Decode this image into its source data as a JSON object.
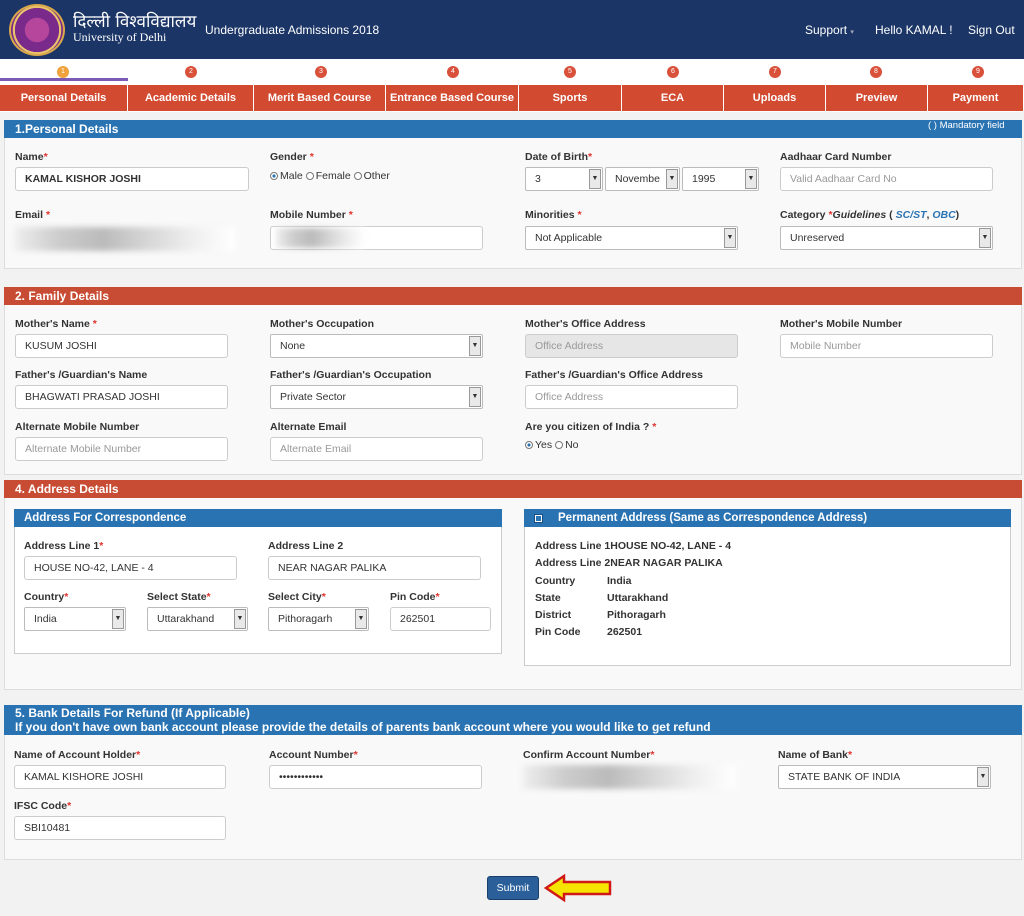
{
  "header": {
    "uni_hindi": "दिल्ली विश्वविद्यालय",
    "uni_en": "University of Delhi",
    "title": "Undergraduate Admissions 2018",
    "support": "Support",
    "support_caret": "▾",
    "greeting": "Hello KAMAL !",
    "signout": "Sign Out"
  },
  "tabs": [
    {
      "num": "1",
      "label": "Personal Details"
    },
    {
      "num": "2",
      "label": "Academic Details"
    },
    {
      "num": "3",
      "label": "Merit Based Course"
    },
    {
      "num": "4",
      "label": "Entrance Based Course"
    },
    {
      "num": "5",
      "label": "Sports"
    },
    {
      "num": "6",
      "label": "ECA"
    },
    {
      "num": "7",
      "label": "Uploads"
    },
    {
      "num": "8",
      "label": "Preview"
    },
    {
      "num": "9",
      "label": "Payment"
    }
  ],
  "personal": {
    "title": "1.Personal Details",
    "mandatory": "( ) Mandatory field",
    "name_label": "Name",
    "name": "KAMAL KISHOR JOSHI",
    "gender_label": "Gender",
    "gender_male": "Male",
    "gender_female": "Female",
    "gender_other": "Other",
    "dob_label": "Date of Birth",
    "dob_day": "3",
    "dob_month": "Novembe",
    "dob_year": "1995",
    "aadhaar_label": "Aadhaar Card Number",
    "aadhaar_ph": "Valid Aadhaar Card No",
    "email_label": "Email",
    "mobile_label": "Mobile Number",
    "minorities_label": "Minorities",
    "minorities": "Not Applicable",
    "category_label": "Category",
    "guidelines_label": "Guidelines",
    "guidelines_open": "(",
    "guidelines_sep": ",",
    "guidelines_close": ")",
    "sc_st": "SC/ST",
    "obc": "OBC",
    "category": "Unreserved"
  },
  "family": {
    "title": "2. Family Details",
    "mother_name_label": "Mother's Name",
    "mother_name": "KUSUM JOSHI",
    "mother_occ_label": "Mother's Occupation",
    "mother_occ": "None",
    "mother_office_label": "Mother's Office Address",
    "mother_office_ph": "Office Address",
    "mother_mobile_label": "Mother's Mobile Number",
    "mother_mobile_ph": "Mobile Number",
    "father_name_label": "Father's /Guardian's Name",
    "father_name": "BHAGWATI PRASAD JOSHI",
    "father_occ_label": "Father's /Guardian's Occupation",
    "father_occ": "Private Sector",
    "father_office_label": "Father's /Guardian's Office Address",
    "father_office_ph": "Office Address",
    "alt_mobile_label": "Alternate Mobile Number",
    "alt_mobile_ph": "Alternate Mobile Number",
    "alt_email_label": "Alternate Email",
    "alt_email_ph": "Alternate Email",
    "citizen_label": "Are you citizen of India ?",
    "yes": "Yes",
    "no": "No"
  },
  "address": {
    "title": "4. Address Details",
    "corr_title": "Address For Correspondence",
    "line1_label": "Address Line 1",
    "line1": "HOUSE NO-42, LANE - 4",
    "line2_label": "Address Line 2",
    "line2": "NEAR NAGAR PALIKA",
    "country_label": "Country",
    "country": "India",
    "state_label": "Select State",
    "state": "Uttarakhand",
    "city_label": "Select City",
    "city": "Pithoragarh",
    "pin_label": "Pin Code",
    "pin": "262501",
    "perm_title": "Permanent Address (Same as Correspondence Address)",
    "perm_line1_label": "Address Line 1",
    "perm_line1": "HOUSE NO-42, LANE - 4",
    "perm_line2_label": "Address Line 2",
    "perm_line2": "NEAR NAGAR PALIKA",
    "perm_country_label": "Country",
    "perm_state_label": "State",
    "perm_district_label": "District",
    "perm_pin_label": "Pin Code",
    "perm_country": "India",
    "perm_state": "Uttarakhand",
    "perm_district": "Pithoragarh",
    "perm_pin": "262501"
  },
  "bank": {
    "title": "5. Bank Details For Refund (If Applicable)",
    "subtitle": "If you don't have own bank account please provide the details of parents bank account where you would like to get refund",
    "holder_label": "Name of Account Holder",
    "holder": "KAMAL KISHORE JOSHI",
    "acc_label": "Account Number",
    "acc": "••••••••••••",
    "confirm_label": "Confirm Account Number",
    "bankname_label": "Name of Bank",
    "bankname": "STATE BANK OF INDIA",
    "ifsc_label": "IFSC Code",
    "ifsc": "SBI10481"
  },
  "submit": "Submit",
  "colors": {
    "header": "#1b3566",
    "tab": "#d24a30",
    "section_blue": "#2a73b3",
    "section_red": "#c84c33",
    "arrow": "#f5e400"
  }
}
